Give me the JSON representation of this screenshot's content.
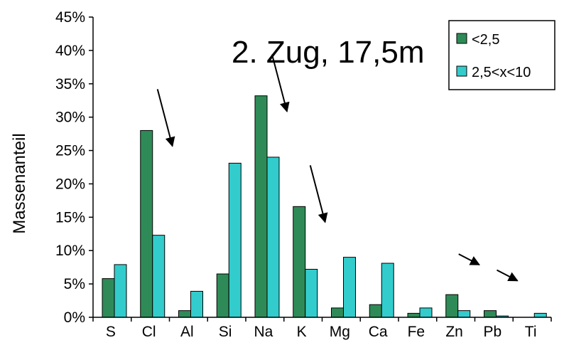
{
  "chart_data": {
    "type": "bar",
    "title": "2. Zug, 17,5m",
    "xlabel": "",
    "ylabel": "Massenanteil",
    "ylim": [
      0,
      45
    ],
    "yticks": [
      "0%",
      "5%",
      "10%",
      "15%",
      "20%",
      "25%",
      "30%",
      "35%",
      "40%",
      "45%"
    ],
    "grid": false,
    "legend_position": "top-right",
    "categories": [
      "S",
      "Cl",
      "Al",
      "Si",
      "Na",
      "K",
      "Mg",
      "Ca",
      "Fe",
      "Zn",
      "Pb",
      "Ti"
    ],
    "series": [
      {
        "name": "<2,5",
        "color": "#2e8b57",
        "values": [
          5.8,
          28.0,
          1.0,
          6.5,
          33.2,
          16.6,
          1.4,
          1.9,
          0.6,
          3.4,
          1.0,
          0.0
        ]
      },
      {
        "name": "2,5<x<10",
        "color": "#33cccc",
        "values": [
          7.9,
          12.3,
          3.9,
          23.1,
          24.0,
          7.2,
          9.0,
          8.1,
          1.4,
          1.0,
          0.2,
          0.6
        ]
      }
    ],
    "annotations": [
      {
        "type": "arrow",
        "target_category": "Cl",
        "direction": "down"
      },
      {
        "type": "arrow",
        "target_category": "Na",
        "direction": "down"
      },
      {
        "type": "arrow",
        "target_category": "K",
        "direction": "down"
      },
      {
        "type": "arrow",
        "target_category": "Zn",
        "direction": "down-right"
      },
      {
        "type": "arrow",
        "target_category": "Pb",
        "direction": "down-right"
      }
    ]
  }
}
